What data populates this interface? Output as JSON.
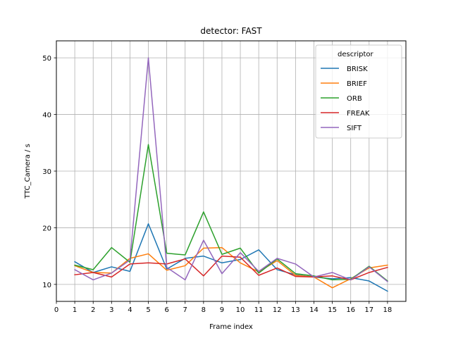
{
  "chart_data": {
    "type": "line",
    "title": "detector: FAST",
    "xlabel": "Frame index",
    "ylabel": "TTC_Camera / s",
    "x": [
      1,
      2,
      3,
      4,
      5,
      6,
      7,
      8,
      9,
      10,
      11,
      12,
      13,
      14,
      15,
      16,
      17,
      18
    ],
    "xlim": [
      0,
      19
    ],
    "ylim": [
      7,
      53
    ],
    "xticks": [
      "0",
      "1",
      "2",
      "3",
      "4",
      "5",
      "6",
      "7",
      "8",
      "9",
      "10",
      "11",
      "12",
      "13",
      "14",
      "15",
      "16",
      "17",
      "18"
    ],
    "yticks": [
      "10",
      "20",
      "30",
      "40",
      "50"
    ],
    "grid": true,
    "legend": {
      "title": "descriptor",
      "position": "top-right"
    },
    "series": [
      {
        "name": "BRISK",
        "color": "#1f77b4",
        "values": [
          14.0,
          12.1,
          13.1,
          12.3,
          20.7,
          12.7,
          14.6,
          15.0,
          13.8,
          14.4,
          16.1,
          12.6,
          11.7,
          11.3,
          11.0,
          11.2,
          10.6,
          8.8
        ]
      },
      {
        "name": "BRIEF",
        "color": "#ff7f0e",
        "values": [
          13.3,
          12.1,
          12.0,
          14.6,
          15.4,
          12.5,
          13.3,
          16.4,
          16.5,
          13.8,
          12.2,
          14.2,
          11.6,
          11.3,
          9.4,
          11.0,
          12.9,
          13.4
        ]
      },
      {
        "name": "ORB",
        "color": "#2ca02c",
        "values": [
          13.4,
          12.6,
          16.5,
          13.9,
          34.7,
          15.5,
          15.2,
          22.8,
          15.3,
          16.4,
          12.0,
          14.5,
          11.9,
          11.5,
          10.8,
          10.9,
          13.2,
          10.6
        ]
      },
      {
        "name": "FREAK",
        "color": "#d62728",
        "values": [
          11.7,
          12.1,
          11.3,
          13.6,
          13.8,
          13.6,
          14.5,
          11.5,
          15.0,
          14.8,
          11.6,
          12.9,
          11.4,
          11.3,
          11.5,
          10.8,
          12.1,
          13.0
        ]
      },
      {
        "name": "SIFT",
        "color": "#9467bd",
        "values": [
          12.6,
          10.8,
          12.0,
          14.3,
          50.0,
          13.0,
          10.8,
          17.8,
          11.9,
          15.6,
          12.3,
          14.6,
          13.6,
          11.3,
          12.1,
          10.8,
          13.1,
          10.5
        ]
      }
    ]
  }
}
